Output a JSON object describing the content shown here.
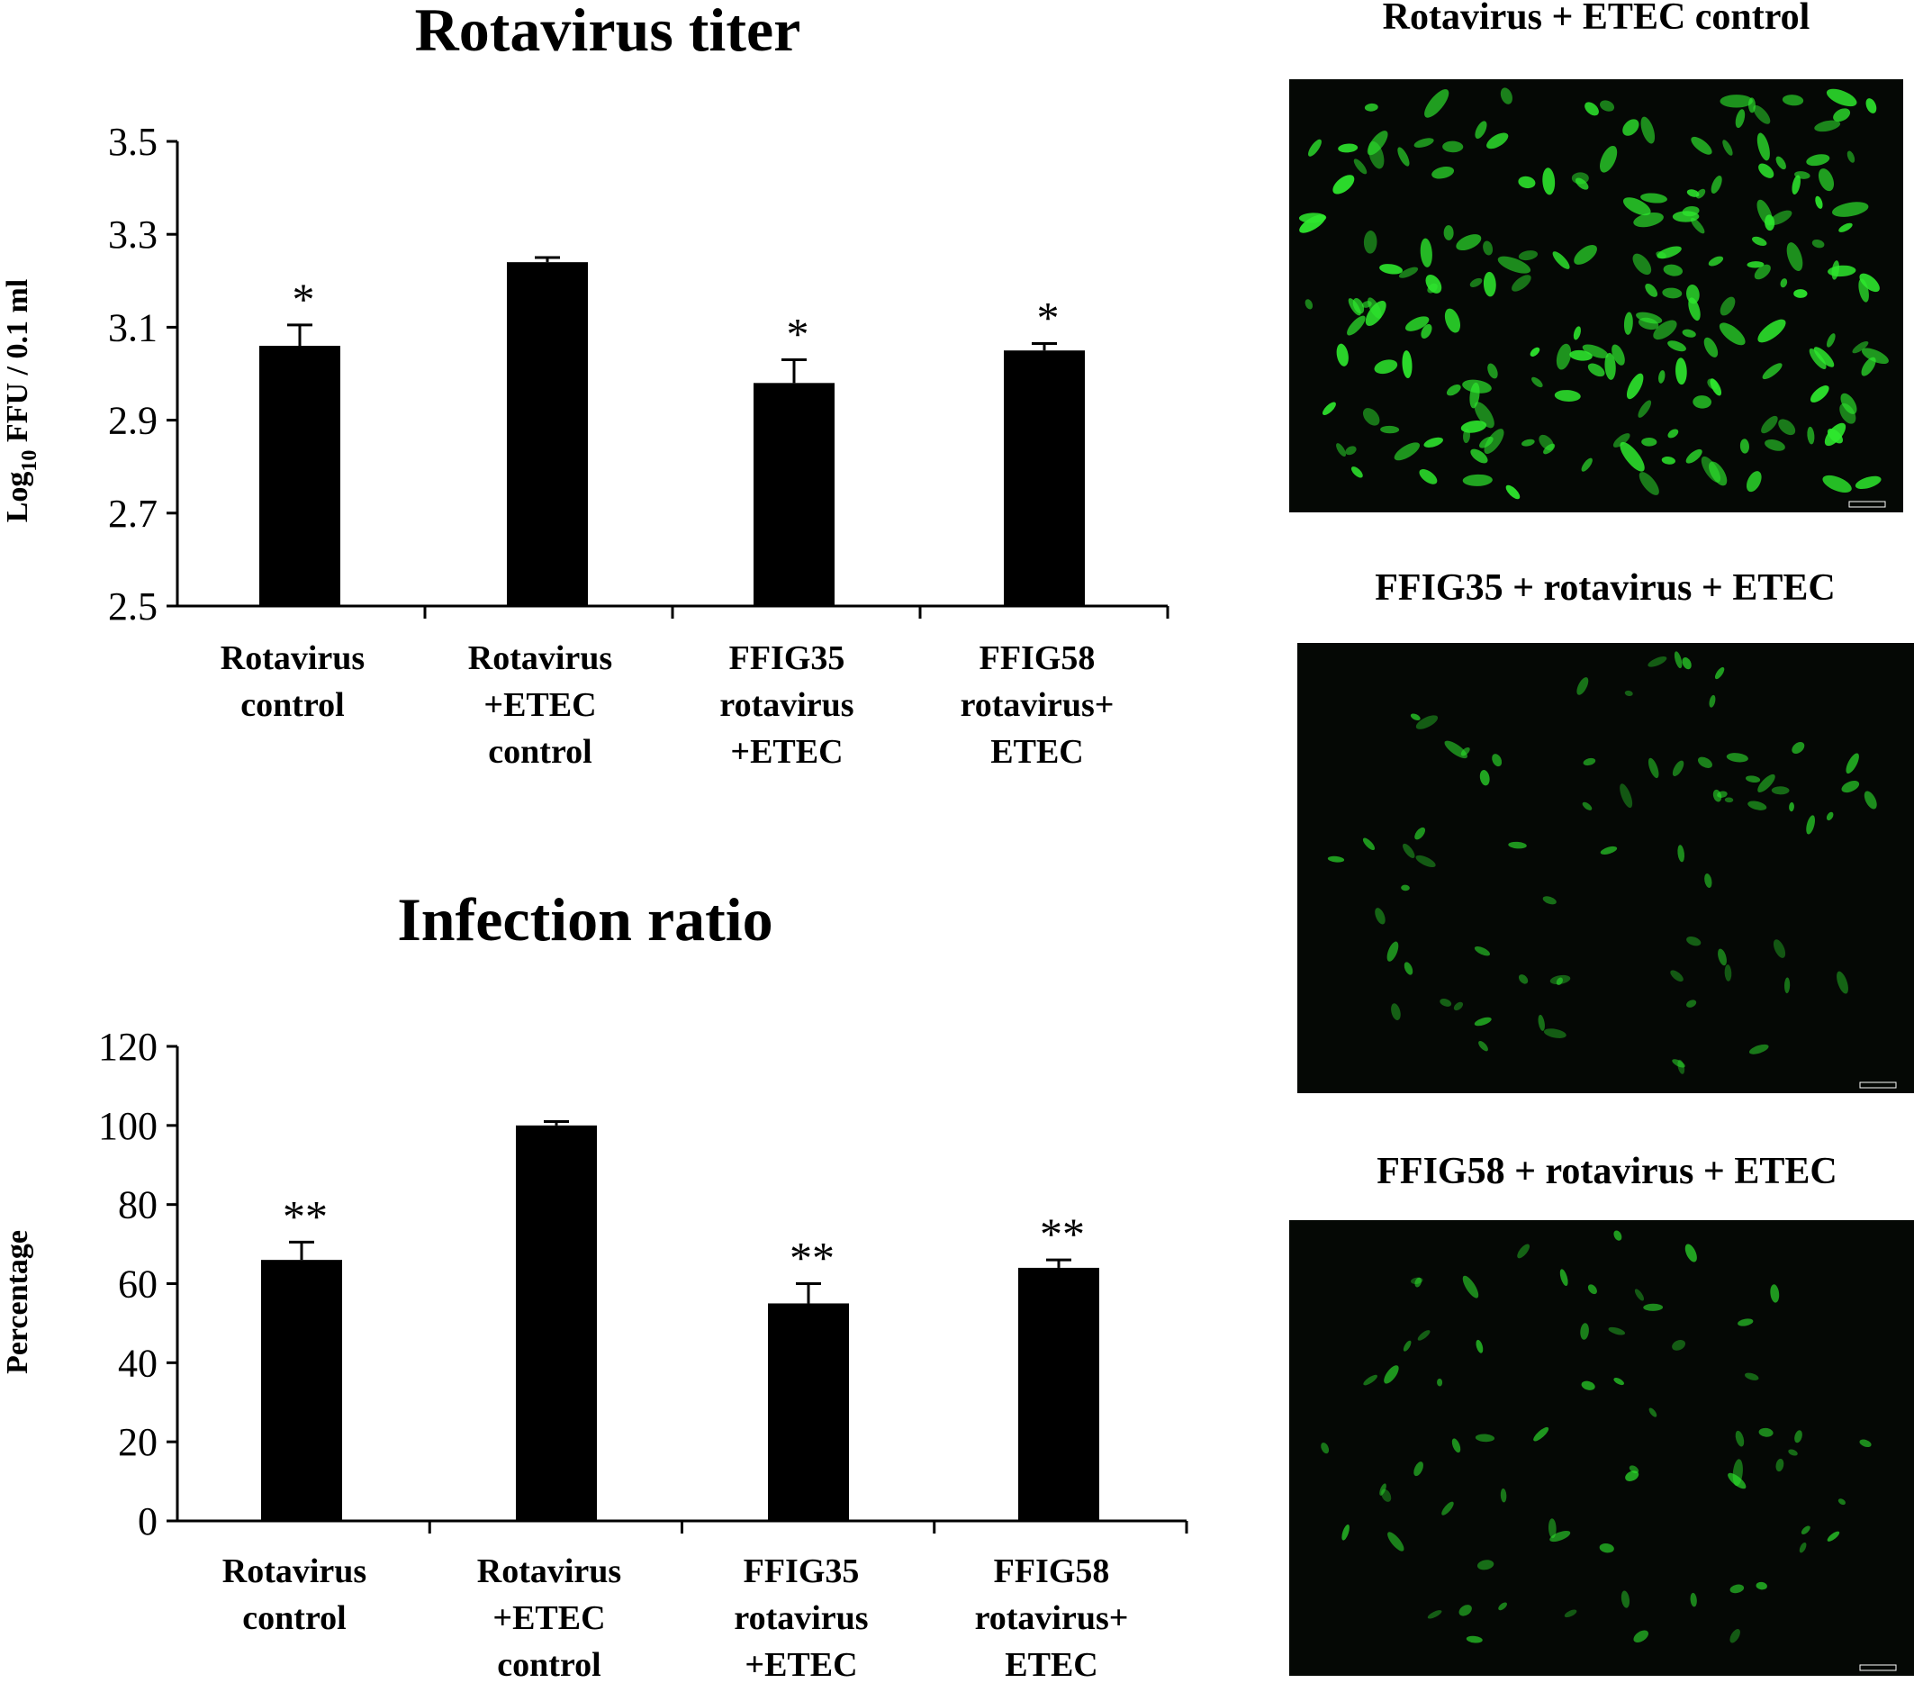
{
  "chart_data": [
    {
      "type": "bar",
      "title": "Rotavirus titer",
      "ylabel": "Log10 FFU / 0.1 ml",
      "ylabel_main": "Log",
      "ylabel_sub": "10",
      "ylabel_rest": " FFU / 0.1 ml",
      "ylim": [
        2.5,
        3.5
      ],
      "yticks": [
        "3.5",
        "3.3",
        "3.1",
        "2.9",
        "2.7",
        "2.5"
      ],
      "categories": [
        [
          "Rotavirus",
          "control"
        ],
        [
          "Rotavirus",
          "+ETEC",
          "control"
        ],
        [
          "FFIG35",
          "rotavirus",
          "+ETEC"
        ],
        [
          "FFIG58",
          "rotavirus+",
          "ETEC"
        ]
      ],
      "values": [
        3.06,
        3.24,
        2.98,
        3.05
      ],
      "errors": [
        0.045,
        0.01,
        0.05,
        0.015
      ],
      "significance": [
        "*",
        "",
        "*",
        "*"
      ],
      "bar_color": "#000000"
    },
    {
      "type": "bar",
      "title": "Infection ratio",
      "ylabel": "Percentage",
      "ylim": [
        0,
        120
      ],
      "yticks": [
        "120",
        "100",
        "80",
        "60",
        "40",
        "20",
        "0"
      ],
      "categories": [
        [
          "Rotavirus",
          "control"
        ],
        [
          "Rotavirus",
          "+ETEC",
          "control"
        ],
        [
          "FFIG35",
          "rotavirus",
          "+ETEC"
        ],
        [
          "FFIG58",
          "rotavirus+",
          "ETEC"
        ]
      ],
      "values": [
        66,
        100,
        55,
        64
      ],
      "errors": [
        4.5,
        1,
        5,
        2
      ],
      "significance": [
        "**",
        "",
        "**",
        "**"
      ],
      "bar_color": "#000000"
    }
  ],
  "panels": [
    {
      "title": "Rotavirus + ETEC control",
      "fluorescence": "high"
    },
    {
      "title": "FFIG35 + rotavirus + ETEC",
      "fluorescence": "low"
    },
    {
      "title": "FFIG58 + rotavirus + ETEC",
      "fluorescence": "low"
    }
  ],
  "colors": {
    "bars": "#000000",
    "panel_bg": "#050805",
    "cells": "#2ee82e"
  }
}
